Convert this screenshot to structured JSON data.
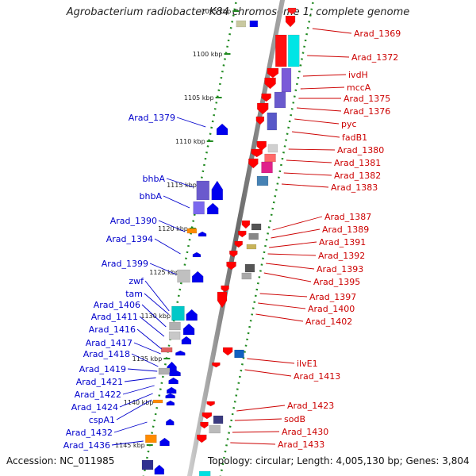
{
  "title": "Agrobacterium radiobacter K84 chromosome 1, complete genome",
  "footer": {
    "accession": "Accession: NC_011985",
    "summary": "Topology: circular; Length: 4,005,130 bp; Genes: 3,804"
  },
  "scale_labels": [
    "1095 kbp",
    "1100 kbp",
    "1105 kbp",
    "1110 kbp",
    "1115 kbp",
    "1120 kbp",
    "1125 kbp",
    "1130 kbp",
    "1135 kbp",
    "1140 kbp",
    "1145 kbp"
  ],
  "right_labels": [
    "Arad_1369",
    "Arad_1372",
    "ivdH",
    "mccA",
    "Arad_1375",
    "Arad_1376",
    "pyc",
    "fadB1",
    "Arad_1380",
    "Arad_1381",
    "Arad_1382",
    "Arad_1383",
    "Arad_1387",
    "Arad_1389",
    "Arad_1391",
    "Arad_1392",
    "Arad_1393",
    "Arad_1395",
    "Arad_1397",
    "Arad_1400",
    "Arad_1402",
    "ilvE1",
    "Arad_1413",
    "Arad_1423",
    "sodB",
    "Arad_1430",
    "Arad_1433"
  ],
  "left_labels": [
    "Arad_1379",
    "bhbA",
    "bhbA",
    "Arad_1390",
    "Arad_1394",
    "Arad_1399",
    "zwf",
    "tam",
    "Arad_1406",
    "Arad_1411",
    "Arad_1416",
    "Arad_1417",
    "Arad_1418",
    "Arad_1419",
    "Arad_1421",
    "Arad_1422",
    "Arad_1424",
    "cspA1",
    "Arad_1432",
    "Arad_1436"
  ],
  "colors": {
    "forward_strand": "#ff0000",
    "reverse_strand": "#0000ee",
    "backbone": "#7a7a7a",
    "scale_ticks": "#228b22",
    "right_label_text": "#cc0000",
    "left_label_text": "#0000cc"
  }
}
